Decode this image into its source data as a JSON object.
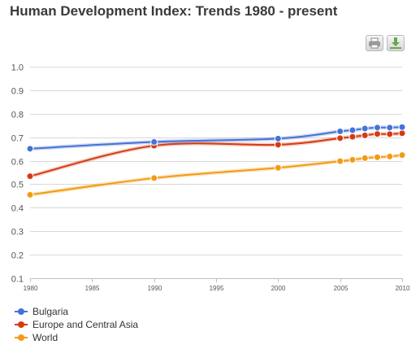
{
  "header": {
    "title": "Human Development Index: Trends 1980 - present"
  },
  "toolbar": {
    "print_icon": "printer-icon",
    "download_icon": "download-icon"
  },
  "chart_data": {
    "type": "line",
    "title": "Human Development Index: Trends 1980 - present",
    "xlabel": "",
    "ylabel": "",
    "xlim": [
      1980,
      2010
    ],
    "ylim": [
      0.1,
      1.0
    ],
    "xticks": [
      1980,
      1985,
      1990,
      1995,
      2000,
      2005,
      2010
    ],
    "yticks": [
      0.1,
      0.2,
      0.3,
      0.4,
      0.5,
      0.6,
      0.7,
      0.8,
      0.9,
      1.0
    ],
    "grid": true,
    "legend": "bottom-left",
    "x": [
      1980,
      1990,
      2000,
      2005,
      2006,
      2007,
      2008,
      2009,
      2010
    ],
    "series": [
      {
        "name": "Bulgaria",
        "color": "#4572d8",
        "values": [
          0.651,
          0.68,
          0.694,
          0.725,
          0.73,
          0.737,
          0.741,
          0.741,
          0.743
        ]
      },
      {
        "name": "Europe and Central Asia",
        "color": "#d63a13",
        "values": [
          0.534,
          0.664,
          0.668,
          0.696,
          0.702,
          0.708,
          0.714,
          0.713,
          0.717
        ]
      },
      {
        "name": "World",
        "color": "#f29b14",
        "values": [
          0.455,
          0.526,
          0.57,
          0.598,
          0.604,
          0.611,
          0.615,
          0.618,
          0.624
        ]
      }
    ]
  }
}
